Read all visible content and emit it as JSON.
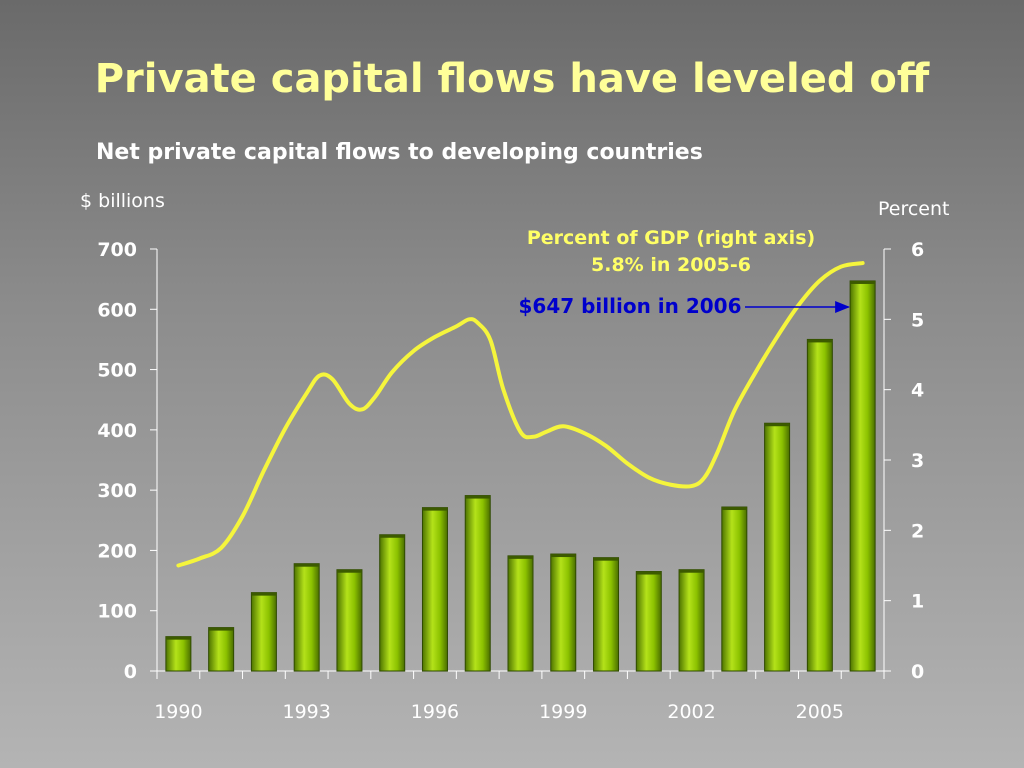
{
  "title": "Private capital flows have leveled off",
  "subtitle": "Net private capital flows to developing countries",
  "colors": {
    "title": "#ffff99",
    "bar": "#8cc200",
    "line": "#f5f53c",
    "annotation_gdp": "#ffff66",
    "annotation_value": "#0000cc"
  },
  "chart_data": {
    "type": "bar",
    "x": [
      1990,
      1991,
      1992,
      1993,
      1994,
      1995,
      1996,
      1997,
      1998,
      1999,
      2000,
      2001,
      2002,
      2003,
      2004,
      2005,
      2006
    ],
    "x_tick_labels": [
      "1990",
      "1993",
      "1996",
      "1999",
      "2002",
      "2005"
    ],
    "ylabel": "$ billions",
    "ylim": [
      0,
      700
    ],
    "y_ticks": [
      "0",
      "100",
      "200",
      "300",
      "400",
      "500",
      "600",
      "700"
    ],
    "y2label": "Percent",
    "y2lim": [
      0,
      6
    ],
    "y2_ticks": [
      "0",
      "1",
      "2",
      "3",
      "4",
      "5",
      "6"
    ],
    "series": [
      {
        "type": "bar",
        "axis": "left",
        "values": [
          57,
          72,
          130,
          178,
          168,
          226,
          271,
          291,
          191,
          194,
          188,
          165,
          168,
          272,
          411,
          550,
          647
        ]
      },
      {
        "name": "Percent of GDP (right axis)",
        "type": "line",
        "axis": "right",
        "points": [
          [
            1990.0,
            1.5
          ],
          [
            1990.5,
            1.6
          ],
          [
            1991.0,
            1.75
          ],
          [
            1991.5,
            2.2
          ],
          [
            1992.0,
            2.85
          ],
          [
            1992.5,
            3.45
          ],
          [
            1993.0,
            3.95
          ],
          [
            1993.3,
            4.2
          ],
          [
            1993.6,
            4.15
          ],
          [
            1994.0,
            3.8
          ],
          [
            1994.3,
            3.72
          ],
          [
            1994.6,
            3.9
          ],
          [
            1995.0,
            4.25
          ],
          [
            1995.5,
            4.55
          ],
          [
            1996.0,
            4.75
          ],
          [
            1996.5,
            4.9
          ],
          [
            1996.8,
            5.0
          ],
          [
            1997.0,
            4.95
          ],
          [
            1997.3,
            4.7
          ],
          [
            1997.6,
            4.0
          ],
          [
            1998.0,
            3.4
          ],
          [
            1998.3,
            3.33
          ],
          [
            1998.6,
            3.4
          ],
          [
            1999.0,
            3.48
          ],
          [
            1999.5,
            3.38
          ],
          [
            2000.0,
            3.2
          ],
          [
            2000.5,
            2.95
          ],
          [
            2001.0,
            2.75
          ],
          [
            2001.5,
            2.65
          ],
          [
            2002.0,
            2.63
          ],
          [
            2002.3,
            2.75
          ],
          [
            2002.6,
            3.1
          ],
          [
            2003.0,
            3.7
          ],
          [
            2003.5,
            4.25
          ],
          [
            2004.0,
            4.75
          ],
          [
            2004.5,
            5.2
          ],
          [
            2005.0,
            5.55
          ],
          [
            2005.5,
            5.75
          ],
          [
            2006.0,
            5.8
          ]
        ]
      }
    ],
    "annotations": [
      {
        "text": "Percent of GDP (right axis)"
      },
      {
        "text": "5.8% in 2005-6"
      },
      {
        "text": "$647 billion in 2006"
      }
    ]
  }
}
